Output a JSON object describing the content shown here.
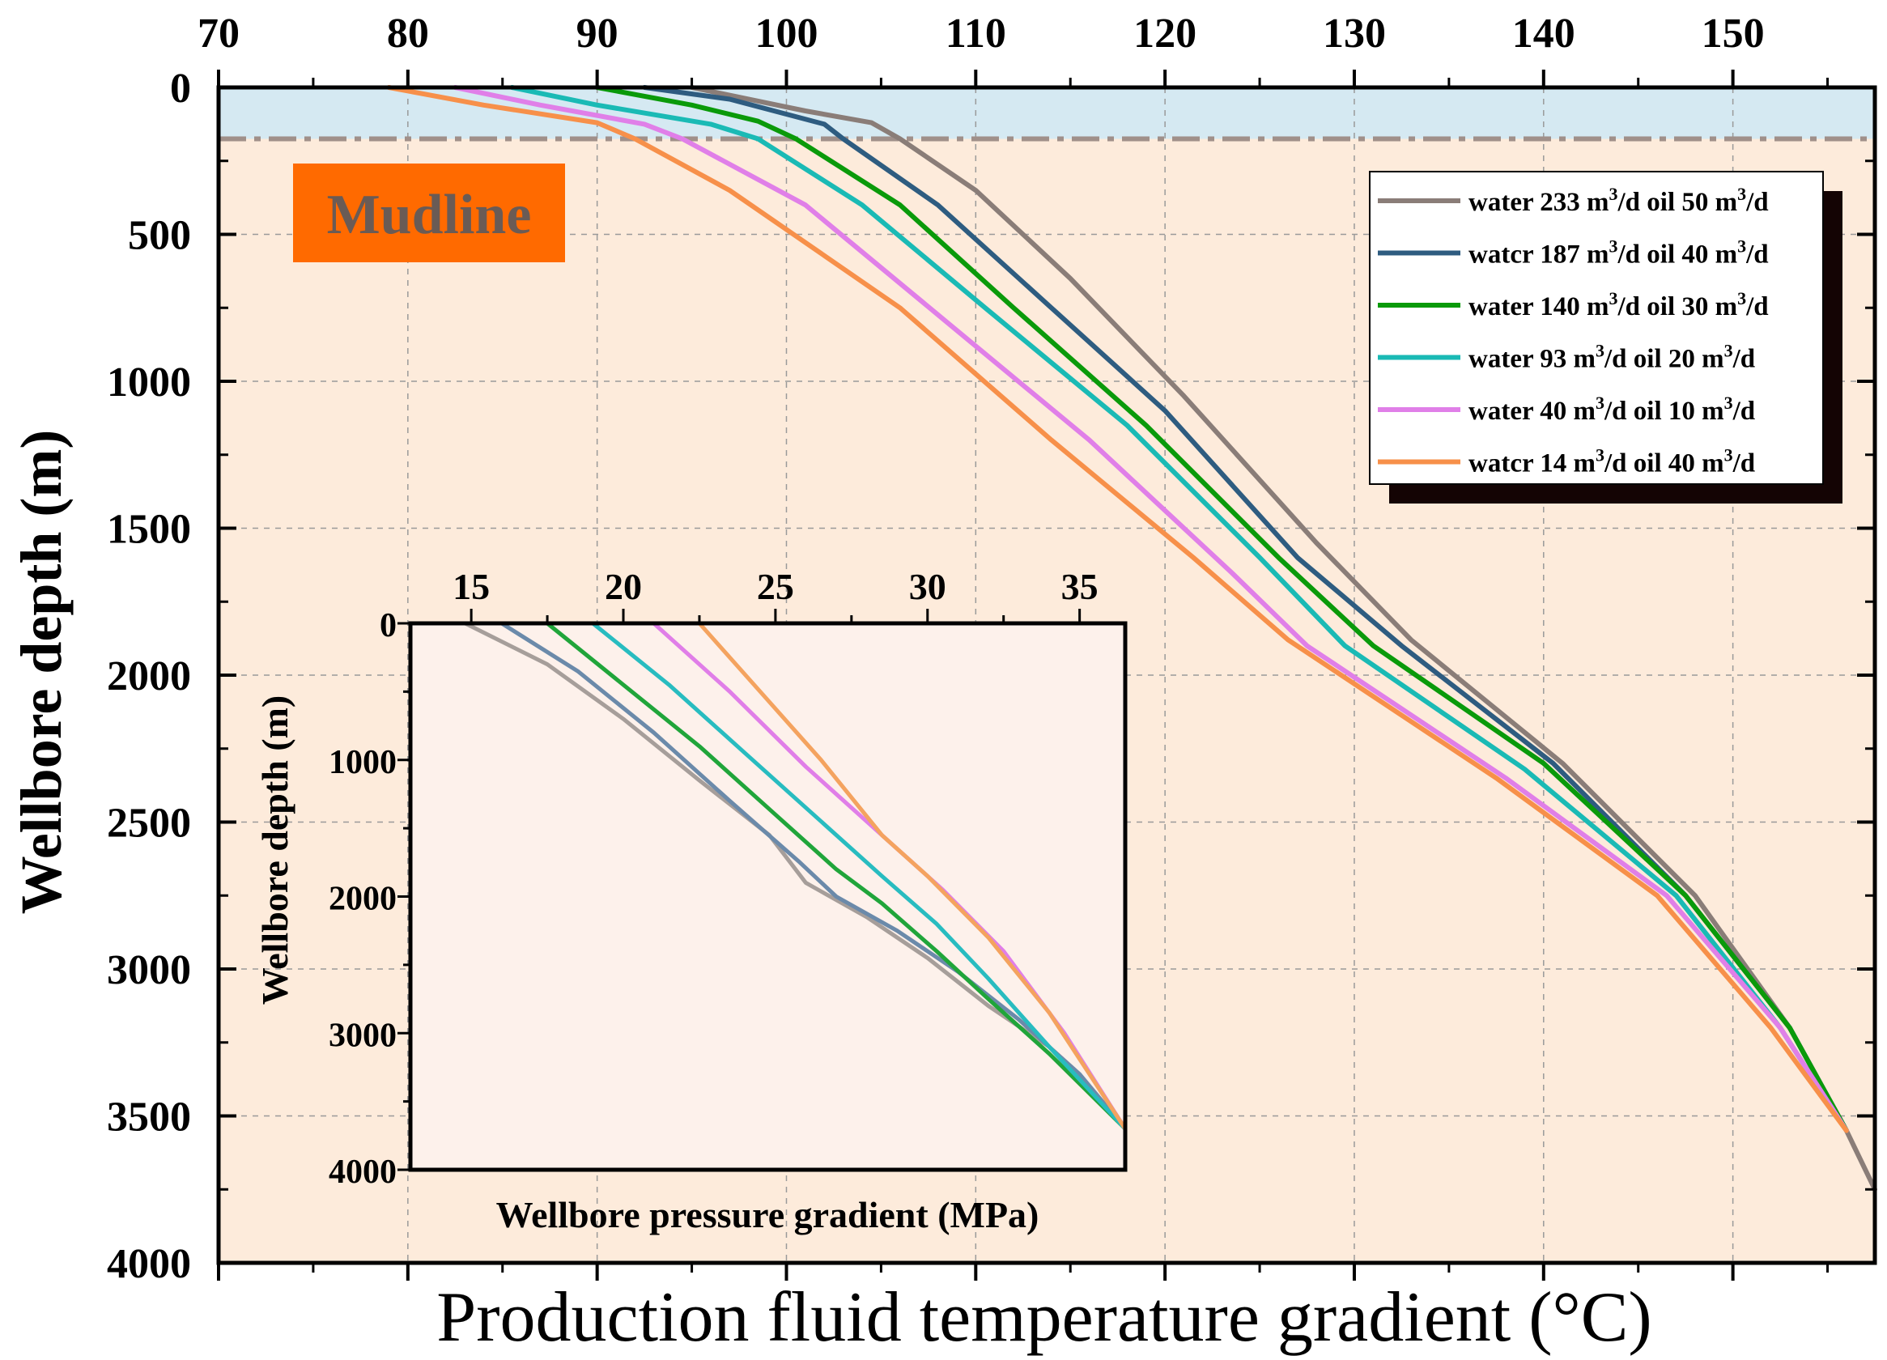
{
  "chart_data": [
    {
      "type": "line",
      "title": "",
      "xlabel": "Production fluid temperature gradient (°C)",
      "ylabel": "Wellbore depth (m)",
      "xlim": [
        70,
        157.5
      ],
      "ylim": [
        0,
        4000
      ],
      "x_axis_position": "top",
      "y_inverted": true,
      "xticks": [
        70,
        80,
        90,
        100,
        110,
        120,
        130,
        140,
        150
      ],
      "yticks": [
        0,
        500,
        1000,
        1500,
        2000,
        2500,
        3000,
        3500,
        4000
      ],
      "grid": true,
      "mudline_depth": 175,
      "annotation": "Mudline",
      "legend_position": "top-right",
      "series": [
        {
          "name": "water 233 m³/d oil 50 m³/d",
          "color": "#8a7d78",
          "x": [
            95,
            101,
            104.5,
            106,
            110,
            115,
            121,
            128,
            133,
            141,
            148,
            153,
            156,
            157.5
          ],
          "y": [
            0,
            80,
            120,
            175,
            350,
            650,
            1050,
            1550,
            1880,
            2300,
            2750,
            3200,
            3550,
            3750
          ]
        },
        {
          "name": "water 187 m³/d oil 40 m³/d",
          "color": "#2e5c80",
          "x": [
            92.5,
            97,
            102,
            103,
            108,
            114,
            120,
            127,
            132.5,
            140.5,
            147.5,
            153,
            156
          ],
          "y": [
            0,
            40,
            125,
            175,
            400,
            750,
            1100,
            1600,
            1900,
            2300,
            2750,
            3200,
            3550
          ]
        },
        {
          "name": "water 140 m³/d oil 30 m³/d",
          "color": "#0a9a0a",
          "x": [
            90,
            95,
            98.5,
            100.5,
            106,
            112,
            119,
            126,
            131,
            140,
            147.5,
            153,
            156
          ],
          "y": [
            0,
            60,
            115,
            175,
            400,
            750,
            1150,
            1600,
            1900,
            2300,
            2750,
            3200,
            3550
          ]
        },
        {
          "name": "water 93 m³/d  oil 20 m³/d",
          "color": "#1abab5",
          "x": [
            85.5,
            90,
            96,
            98.5,
            104,
            110.5,
            118,
            125,
            129.5,
            139,
            147,
            152.5,
            156
          ],
          "y": [
            0,
            60,
            125,
            175,
            400,
            750,
            1150,
            1600,
            1900,
            2320,
            2750,
            3200,
            3550
          ]
        },
        {
          "name": "water 40 m³/d  oil 10 m³/d",
          "color": "#e07fe8",
          "x": [
            82.5,
            87,
            92.5,
            94.5,
            101,
            108.5,
            116,
            123.5,
            127.5,
            138,
            146.5,
            152.5,
            156
          ],
          "y": [
            0,
            60,
            125,
            175,
            400,
            800,
            1200,
            1650,
            1900,
            2350,
            2750,
            3200,
            3550
          ]
        },
        {
          "name": "water 14 m³/d  oil 40 m³/d",
          "color": "#f7904a",
          "x": [
            79,
            84,
            90,
            92,
            97,
            106,
            114,
            121.5,
            126.5,
            137.5,
            146,
            152,
            156
          ],
          "y": [
            0,
            60,
            120,
            175,
            350,
            750,
            1200,
            1600,
            1880,
            2350,
            2750,
            3200,
            3550
          ]
        }
      ]
    },
    {
      "type": "line",
      "title": "",
      "xlabel": "Wellbore pressure gradient (MPa)",
      "ylabel": "Wellbore depth (m)",
      "xlim": [
        13,
        36.5
      ],
      "ylim": [
        0,
        4000
      ],
      "x_axis_position": "top",
      "y_inverted": true,
      "xticks": [
        15,
        20,
        25,
        30,
        35
      ],
      "yticks": [
        0,
        1000,
        2000,
        3000,
        4000
      ],
      "grid": false,
      "series": [
        {
          "name": "water 233 m³/d oil 50 m³/d",
          "color": "#a69e9a",
          "x": [
            14.8,
            17.5,
            20,
            22.5,
            24.8,
            26,
            28,
            30,
            32,
            34,
            36.5
          ],
          "y": [
            0,
            300,
            700,
            1150,
            1550,
            1900,
            2150,
            2450,
            2800,
            3100,
            3700
          ]
        },
        {
          "name": "water 187 m³/d oil 40 m³/d",
          "color": "#6b8aaa",
          "x": [
            16,
            18.5,
            21,
            23.5,
            25.8,
            27,
            29,
            31,
            33,
            35,
            36.5
          ],
          "y": [
            0,
            350,
            800,
            1300,
            1750,
            2000,
            2250,
            2550,
            2900,
            3300,
            3700
          ]
        },
        {
          "name": "water 140 m³/d oil 30 m³/d",
          "color": "#20a53a",
          "x": [
            17.5,
            20,
            22.5,
            25,
            27,
            28.5,
            30.3,
            32,
            34,
            36.5
          ],
          "y": [
            0,
            450,
            900,
            1400,
            1800,
            2050,
            2400,
            2750,
            3150,
            3700
          ]
        },
        {
          "name": "water 93 m³/d  oil 20 m³/d",
          "color": "#28bcc0",
          "x": [
            19,
            21.5,
            24,
            26.5,
            28.5,
            30.3,
            32,
            34,
            36.5
          ],
          "y": [
            0,
            450,
            950,
            1450,
            1850,
            2200,
            2600,
            3100,
            3700
          ]
        },
        {
          "name": "water 40 m³/d  oil 10 m³/d",
          "color": "#e07ee8",
          "x": [
            21,
            23.5,
            26,
            28.5,
            30.5,
            32.5,
            34.5,
            36.5
          ],
          "y": [
            0,
            500,
            1050,
            1550,
            1950,
            2400,
            3000,
            3700
          ]
        },
        {
          "name": "water 14 m³/d  oil 40 m³/d",
          "color": "#f4a35f",
          "x": [
            22.5,
            24.5,
            26.5,
            28.5,
            30,
            32,
            34,
            36.5
          ],
          "y": [
            0,
            500,
            1000,
            1550,
            1850,
            2300,
            2850,
            3700
          ]
        }
      ]
    }
  ],
  "legend": [
    {
      "pre1": "water 233 m",
      "mid": " oil 50 m",
      "end": "/d"
    },
    {
      "pre1": "watcr 187 m",
      "mid": " oil 40 m",
      "end": "/d"
    },
    {
      "pre1": "water 140 m",
      "mid": " oil 30 m",
      "end": "/d"
    },
    {
      "pre1": "water 93 m",
      "mid": "  oil 20 m",
      "end": "/d"
    },
    {
      "pre1": "water 40 m",
      "mid": "  oil 10 m",
      "end": "/d"
    },
    {
      "pre1": "watcr 14 m",
      "mid": "  oil 40 m",
      "end": "/d"
    }
  ],
  "legend_sup": "3",
  "legend_unit_tail": "/d",
  "colors": {
    "plot_bg": "#fdebdb",
    "sea_band": "#d5e9f2",
    "mudline_line": "#a0908a",
    "mudline_box": "#ff6a00",
    "mudline_text": "#6a5b55",
    "inset_bg": "#fdf1eb"
  }
}
